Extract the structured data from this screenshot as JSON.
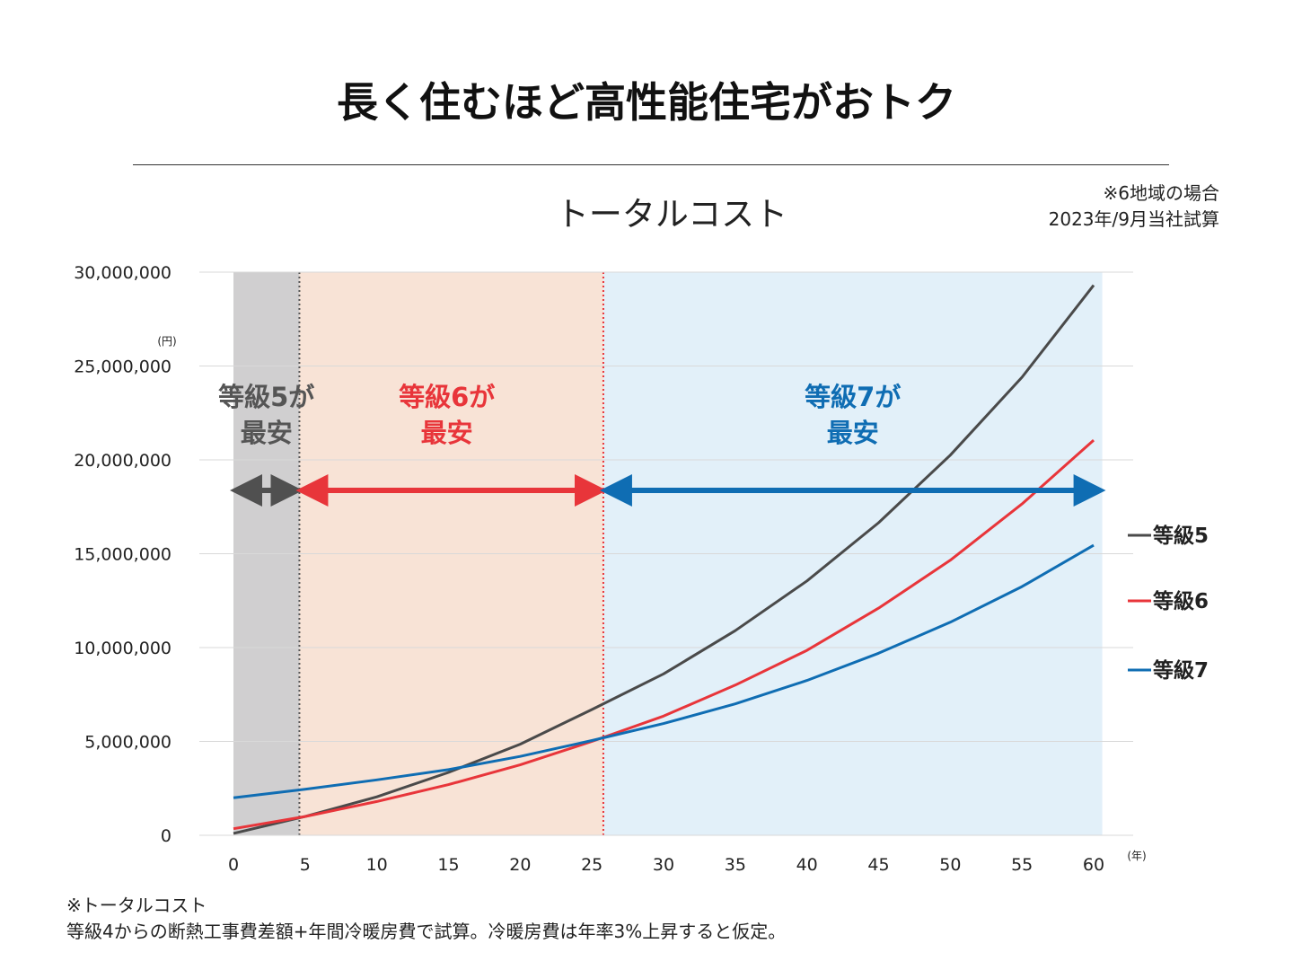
{
  "page": {
    "title": "長く住むほど高性能住宅がおトク",
    "note_line1": "※6地域の場合",
    "note_line2": "2023年/9月当社試算",
    "footnote_line1": "※トータルコスト",
    "footnote_line2": "等級4からの断熱工事費差額+年間冷暖房費で試算。冷暖房費は年率3%上昇すると仮定。"
  },
  "chart_data": {
    "type": "line",
    "title": "トータルコスト",
    "xlabel": "(年)",
    "ylabel": "(円)",
    "xlim": [
      0,
      60
    ],
    "ylim": [
      0,
      30000000
    ],
    "x_ticks": [
      "0",
      "5",
      "10",
      "15",
      "20",
      "25",
      "30",
      "35",
      "40",
      "45",
      "50",
      "55",
      "60"
    ],
    "y_ticks": [
      "0",
      "5,000,000",
      "10,000,000",
      "15,000,000",
      "20,000,000",
      "25,000,000",
      "30,000,000"
    ],
    "y_tick_values": [
      0,
      5000000,
      10000000,
      15000000,
      20000000,
      25000000,
      30000000
    ],
    "grid": true,
    "legend_position": "right",
    "x": [
      0,
      5,
      10,
      15,
      20,
      25,
      30,
      35,
      40,
      45,
      50,
      55,
      60
    ],
    "series": [
      {
        "name": "等級5",
        "color": "#4a4a4a",
        "values": [
          100000,
          1000000,
          2050000,
          3350000,
          4850000,
          6700000,
          8600000,
          10900000,
          13550000,
          16650000,
          20250000,
          24400000,
          29300000
        ]
      },
      {
        "name": "等級6",
        "color": "#e8353a",
        "values": [
          350000,
          1000000,
          1800000,
          2700000,
          3750000,
          5000000,
          6350000,
          8000000,
          9850000,
          12100000,
          14650000,
          17650000,
          21050000
        ]
      },
      {
        "name": "等級7",
        "color": "#0f6db3",
        "values": [
          2000000,
          2450000,
          2950000,
          3500000,
          4200000,
          5050000,
          5950000,
          7000000,
          8250000,
          9700000,
          11350000,
          13250000,
          15450000
        ]
      }
    ],
    "regions": [
      {
        "x_start": 0,
        "x_end": 4.6,
        "fill": "#d0cfd0",
        "line": "#555555",
        "label_line1": "等級5が",
        "label_line2": "最安",
        "label_color": "#555555",
        "arrow_color": "#505050"
      },
      {
        "x_start": 4.6,
        "x_end": 25.8,
        "fill": "#f8e3d6",
        "line": "#e8353a",
        "label_line1": "等級6が",
        "label_line2": "最安",
        "label_color": "#e8353a",
        "arrow_color": "#e8353a"
      },
      {
        "x_start": 25.8,
        "x_end": 60.6,
        "fill": "#e2f0f9",
        "line": "",
        "label_line1": "等級7が",
        "label_line2": "最安",
        "label_color": "#0f6db3",
        "arrow_color": "#0f6db3"
      }
    ]
  }
}
